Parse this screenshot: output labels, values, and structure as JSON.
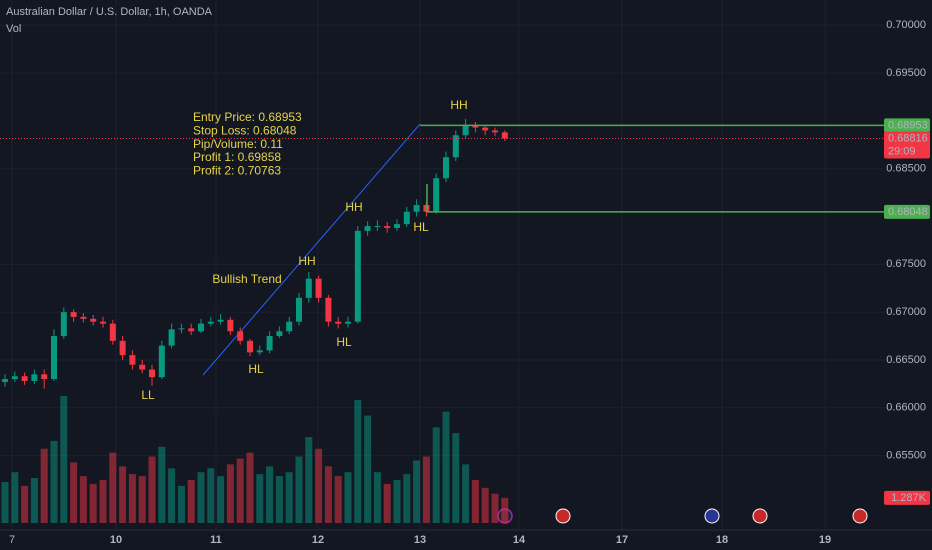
{
  "chart_data": {
    "type": "candlestick",
    "title": "Australian Dollar / U.S. Dollar, 1h, OANDA",
    "indicator": "Vol",
    "up_color": "#089981",
    "down_color": "#f23645",
    "open": [
      0.6627,
      0.663,
      0.6633,
      0.6628,
      0.6635,
      0.663,
      0.6675,
      0.67,
      0.6695,
      0.6693,
      0.669,
      0.6688,
      0.667,
      0.6655,
      0.6645,
      0.664,
      0.6632,
      0.6665,
      0.6682,
      0.6683,
      0.668,
      0.6688,
      0.669,
      0.6692,
      0.668,
      0.667,
      0.6658,
      0.666,
      0.6675,
      0.668,
      0.669,
      0.6715,
      0.6735,
      0.6715,
      0.669,
      0.6688,
      0.669,
      0.6785,
      0.679,
      0.679,
      0.6788,
      0.6792,
      0.6805,
      0.6812,
      0.6805,
      0.684,
      0.6862,
      0.6885,
      0.6895,
      0.6893,
      0.689,
      0.6888
    ],
    "high": [
      0.6635,
      0.6638,
      0.6637,
      0.664,
      0.664,
      0.6682,
      0.6705,
      0.6703,
      0.6699,
      0.6697,
      0.6695,
      0.6692,
      0.6675,
      0.666,
      0.665,
      0.6645,
      0.667,
      0.6688,
      0.6688,
      0.6688,
      0.6693,
      0.6695,
      0.6698,
      0.6695,
      0.6684,
      0.6672,
      0.6665,
      0.668,
      0.6685,
      0.6695,
      0.672,
      0.6742,
      0.6738,
      0.6718,
      0.6695,
      0.6695,
      0.679,
      0.6795,
      0.6796,
      0.6794,
      0.6797,
      0.681,
      0.6818,
      0.6815,
      0.6845,
      0.6868,
      0.689,
      0.6902,
      0.6899,
      0.6896,
      0.6893,
      0.689
    ],
    "low": [
      0.6622,
      0.6627,
      0.6624,
      0.6625,
      0.662,
      0.6628,
      0.6672,
      0.669,
      0.6689,
      0.6686,
      0.6684,
      0.6666,
      0.665,
      0.664,
      0.6636,
      0.6623,
      0.663,
      0.6662,
      0.6678,
      0.6676,
      0.6678,
      0.6685,
      0.6687,
      0.6676,
      0.6666,
      0.6654,
      0.6655,
      0.6657,
      0.6673,
      0.6677,
      0.6686,
      0.671,
      0.671,
      0.6685,
      0.6683,
      0.6684,
      0.6688,
      0.678,
      0.6785,
      0.6783,
      0.6785,
      0.6789,
      0.68,
      0.68,
      0.6803,
      0.6836,
      0.6858,
      0.6882,
      0.6888,
      0.6885,
      0.6884,
      0.6879
    ],
    "close": [
      0.663,
      0.6633,
      0.6628,
      0.6635,
      0.663,
      0.6675,
      0.67,
      0.6695,
      0.6693,
      0.669,
      0.6688,
      0.667,
      0.6655,
      0.6645,
      0.664,
      0.6632,
      0.6665,
      0.6682,
      0.6683,
      0.668,
      0.6688,
      0.669,
      0.6692,
      0.668,
      0.667,
      0.6658,
      0.666,
      0.6675,
      0.668,
      0.669,
      0.6715,
      0.6735,
      0.6715,
      0.669,
      0.6688,
      0.669,
      0.6785,
      0.679,
      0.679,
      0.6788,
      0.6792,
      0.6805,
      0.6812,
      0.6805,
      0.684,
      0.6862,
      0.6885,
      0.6895,
      0.6893,
      0.689,
      0.6888,
      0.68816
    ],
    "volume": [
      2100,
      2600,
      1900,
      2300,
      3800,
      4200,
      6500,
      3100,
      2400,
      2000,
      2200,
      3600,
      2900,
      2500,
      2400,
      3400,
      3900,
      2800,
      1900,
      2200,
      2600,
      2800,
      2400,
      3000,
      3300,
      3600,
      2500,
      2900,
      2400,
      2600,
      3400,
      4400,
      3800,
      2900,
      2400,
      2600,
      6300,
      5500,
      2600,
      2000,
      2200,
      2500,
      3200,
      3400,
      4900,
      5700,
      4600,
      3000,
      2200,
      1800,
      1500,
      1287
    ],
    "volume_last_label": "1.287K",
    "x_labels": [
      "7",
      "10",
      "11",
      "12",
      "13",
      "14",
      "17",
      "18",
      "19"
    ],
    "ylim": [
      0.64722,
      0.70264
    ],
    "yticks": [
      {
        "value": 0.655,
        "label": "0.65500"
      },
      {
        "value": 0.66,
        "label": "0.66000"
      },
      {
        "value": 0.665,
        "label": "0.66500"
      },
      {
        "value": 0.67,
        "label": "0.67000"
      },
      {
        "value": 0.675,
        "label": "0.67500"
      },
      {
        "value": 0.685,
        "label": "0.68500"
      },
      {
        "value": 0.695,
        "label": "0.69500"
      },
      {
        "value": 0.7,
        "label": "0.70000"
      }
    ],
    "grid": true,
    "entry_price": {
      "value": 0.68953,
      "label": "0.68953"
    },
    "stop_price": {
      "value": 0.68048,
      "label": "0.68048"
    },
    "current_price": {
      "value": 0.68816,
      "label": "0.68816"
    },
    "countdown": "29:09",
    "info_lines": [
      "Entry Price: 0.68953",
      "Stop Loss: 0.68048",
      "Pip/Volume: 0.11",
      "Profit 1: 0.69858",
      "Profit 2: 0.70763"
    ],
    "pattern_labels": [
      "LL",
      "HL",
      "HH",
      "HH",
      "HL",
      "HL",
      "HH",
      "Bullish Trend"
    ]
  }
}
